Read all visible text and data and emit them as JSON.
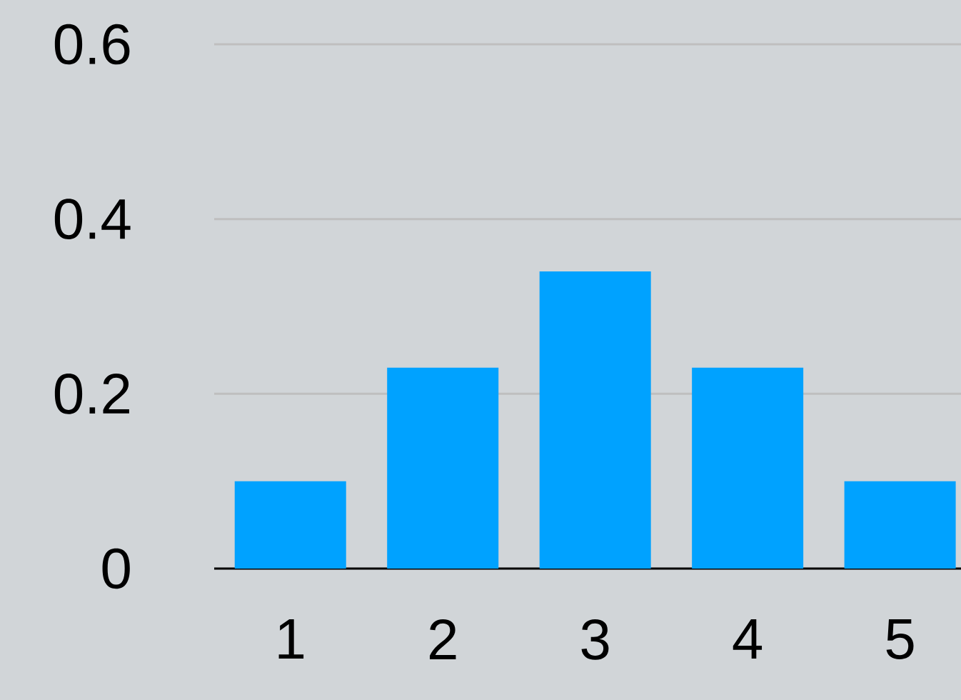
{
  "chart_data": {
    "type": "bar",
    "categories": [
      "1",
      "2",
      "3",
      "4",
      "5"
    ],
    "values": [
      0.1,
      0.23,
      0.34,
      0.23,
      0.1
    ],
    "color": "#00a2ff",
    "ylim": [
      0,
      0.6
    ],
    "yticks": [
      0,
      0.2,
      0.4,
      0.6
    ],
    "grid": "y"
  }
}
